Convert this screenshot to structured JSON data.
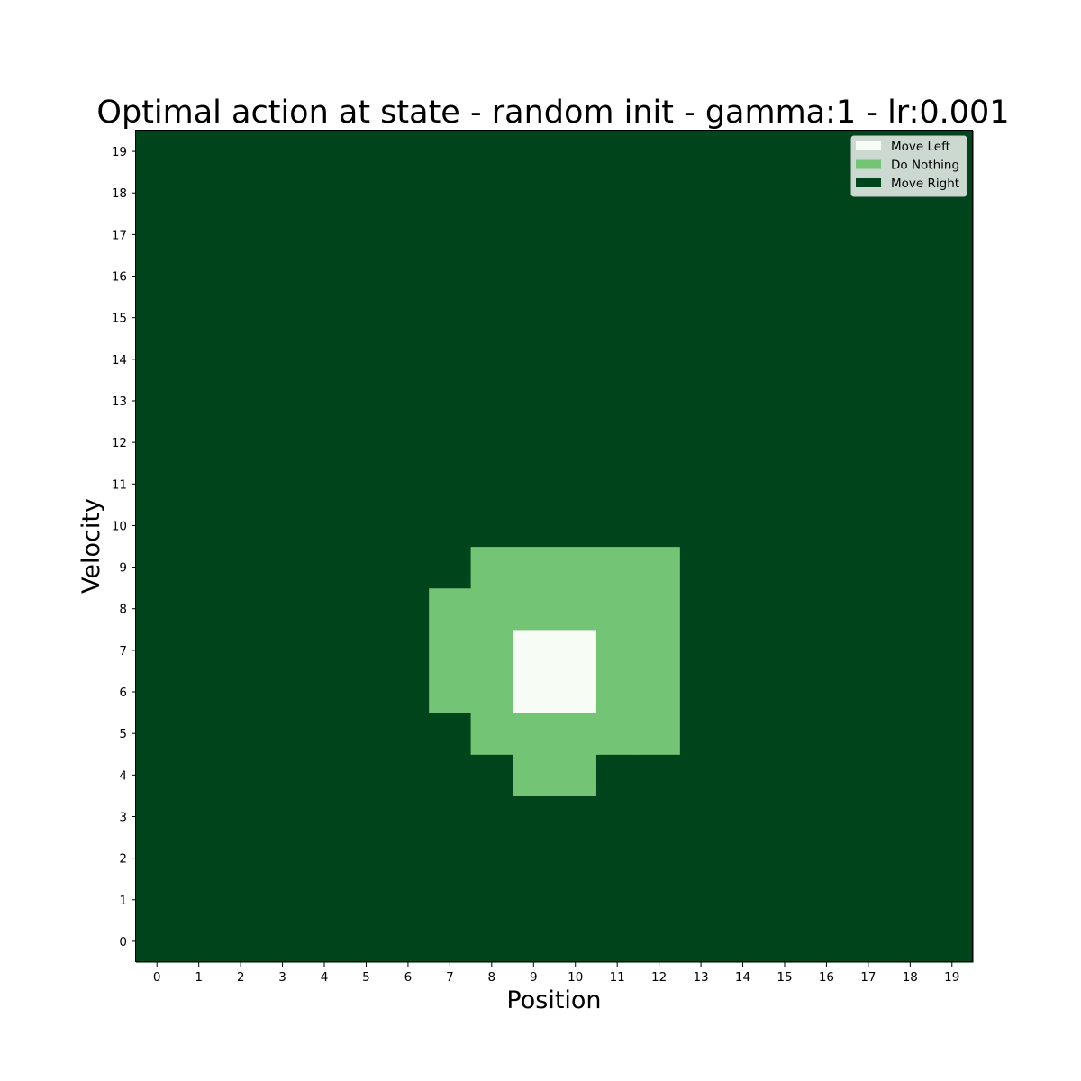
{
  "chart_data": {
    "type": "heatmap",
    "title": "Optimal action at state - random init - gamma:1 - lr:0.001",
    "xlabel": "Position",
    "ylabel": "Velocity",
    "x_ticks": [
      "0",
      "1",
      "2",
      "3",
      "4",
      "5",
      "6",
      "7",
      "8",
      "9",
      "10",
      "11",
      "12",
      "13",
      "14",
      "15",
      "16",
      "17",
      "18",
      "19"
    ],
    "y_ticks": [
      "0",
      "1",
      "2",
      "3",
      "4",
      "5",
      "6",
      "7",
      "8",
      "9",
      "10",
      "11",
      "12",
      "13",
      "14",
      "15",
      "16",
      "17",
      "18",
      "19"
    ],
    "legend": {
      "placement": "top-right",
      "entries": [
        {
          "label": "Move Left",
          "value": 0,
          "color": "#f7fcf5"
        },
        {
          "label": "Do Nothing",
          "value": 1,
          "color": "#74c476"
        },
        {
          "label": "Move Right",
          "value": 2,
          "color": "#00441b"
        }
      ]
    },
    "default_value": 2,
    "cells": [
      {
        "position": 9,
        "velocity": 4,
        "value": 1
      },
      {
        "position": 10,
        "velocity": 4,
        "value": 1
      },
      {
        "position": 8,
        "velocity": 5,
        "value": 1
      },
      {
        "position": 9,
        "velocity": 5,
        "value": 1
      },
      {
        "position": 10,
        "velocity": 5,
        "value": 1
      },
      {
        "position": 11,
        "velocity": 5,
        "value": 1
      },
      {
        "position": 12,
        "velocity": 5,
        "value": 1
      },
      {
        "position": 7,
        "velocity": 6,
        "value": 1
      },
      {
        "position": 8,
        "velocity": 6,
        "value": 1
      },
      {
        "position": 9,
        "velocity": 6,
        "value": 0
      },
      {
        "position": 10,
        "velocity": 6,
        "value": 0
      },
      {
        "position": 11,
        "velocity": 6,
        "value": 1
      },
      {
        "position": 12,
        "velocity": 6,
        "value": 1
      },
      {
        "position": 7,
        "velocity": 7,
        "value": 1
      },
      {
        "position": 8,
        "velocity": 7,
        "value": 1
      },
      {
        "position": 9,
        "velocity": 7,
        "value": 0
      },
      {
        "position": 10,
        "velocity": 7,
        "value": 0
      },
      {
        "position": 11,
        "velocity": 7,
        "value": 1
      },
      {
        "position": 12,
        "velocity": 7,
        "value": 1
      },
      {
        "position": 7,
        "velocity": 8,
        "value": 1
      },
      {
        "position": 8,
        "velocity": 8,
        "value": 1
      },
      {
        "position": 9,
        "velocity": 8,
        "value": 1
      },
      {
        "position": 10,
        "velocity": 8,
        "value": 1
      },
      {
        "position": 11,
        "velocity": 8,
        "value": 1
      },
      {
        "position": 12,
        "velocity": 8,
        "value": 1
      },
      {
        "position": 8,
        "velocity": 9,
        "value": 1
      },
      {
        "position": 9,
        "velocity": 9,
        "value": 1
      },
      {
        "position": 10,
        "velocity": 9,
        "value": 1
      },
      {
        "position": 11,
        "velocity": 9,
        "value": 1
      },
      {
        "position": 12,
        "velocity": 9,
        "value": 1
      }
    ]
  }
}
